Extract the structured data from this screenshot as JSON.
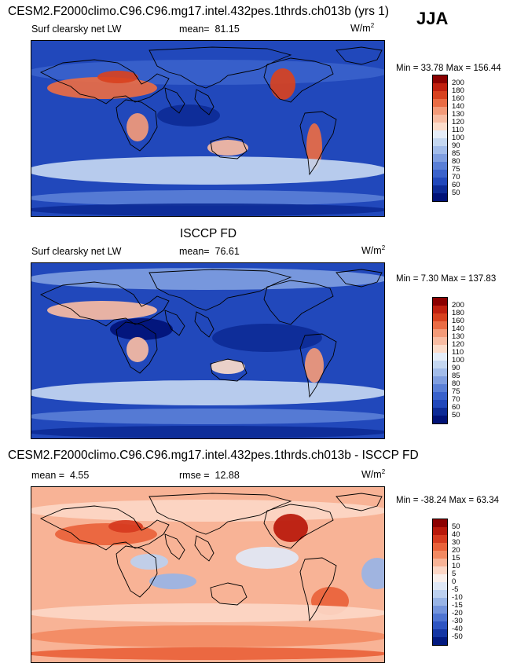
{
  "season": "JJA",
  "unit_base": "W/m",
  "unit_exp": "2",
  "chart_data": [
    {
      "type": "heatmap",
      "title": "CESM2.F2000climo.C96.C96.mg17.intel.432pes.1thrds.ch013b (yrs 1)",
      "variable": "Surf clearsky net LW",
      "mean_label": "mean=",
      "mean": "81.15",
      "stats": "Min =  33.78 Max = 156.44",
      "min": 33.78,
      "max": 156.44,
      "colorbar_levels": [
        "200",
        "180",
        "160",
        "140",
        "130",
        "120",
        "110",
        "100",
        "90",
        "85",
        "80",
        "75",
        "70",
        "60",
        "50"
      ],
      "colorbar_colors": [
        "#8b0000",
        "#c0200f",
        "#d8421f",
        "#ea6c44",
        "#f39a78",
        "#f8bca2",
        "#fcdcca",
        "#e5edf8",
        "#c4d7f1",
        "#a2bcea",
        "#7f9ee0",
        "#5a7fd6",
        "#3a62cb",
        "#2148bb",
        "#0d2b96",
        "#011277"
      ]
    },
    {
      "type": "heatmap",
      "title": "ISCCP FD",
      "variable": "Surf clearsky net LW",
      "mean_label": "mean=",
      "mean": "76.61",
      "stats": "Min =   7.30 Max = 137.83",
      "min": 7.3,
      "max": 137.83,
      "colorbar_levels": [
        "200",
        "180",
        "160",
        "140",
        "130",
        "120",
        "110",
        "100",
        "90",
        "85",
        "80",
        "75",
        "70",
        "60",
        "50"
      ],
      "colorbar_colors": [
        "#8b0000",
        "#c0200f",
        "#d8421f",
        "#ea6c44",
        "#f39a78",
        "#f8bca2",
        "#fcdcca",
        "#e5edf8",
        "#c4d7f1",
        "#a2bcea",
        "#7f9ee0",
        "#5a7fd6",
        "#3a62cb",
        "#2148bb",
        "#0d2b96",
        "#011277"
      ]
    },
    {
      "type": "heatmap",
      "title": "CESM2.F2000climo.C96.C96.mg17.intel.432pes.1thrds.ch013b - ISCCP FD",
      "mean_label": "mean =",
      "mean": "4.55",
      "rmse_label": "rmse =",
      "rmse": "12.88",
      "stats": "Min = -38.24 Max =  63.34",
      "min": -38.24,
      "max": 63.34,
      "colorbar_levels": [
        "50",
        "40",
        "30",
        "20",
        "15",
        "10",
        "5",
        "0",
        "-5",
        "-10",
        "-15",
        "-20",
        "-30",
        "-40",
        "-50"
      ],
      "colorbar_colors": [
        "#8b0000",
        "#b8180a",
        "#d63a1e",
        "#e9623a",
        "#f28a62",
        "#f8b396",
        "#fcd7c6",
        "#faf0ec",
        "#dfe8f6",
        "#bcd0ef",
        "#98b4e6",
        "#7394dc",
        "#4e74d1",
        "#2e55c2",
        "#1436a3",
        "#021a80"
      ]
    }
  ]
}
